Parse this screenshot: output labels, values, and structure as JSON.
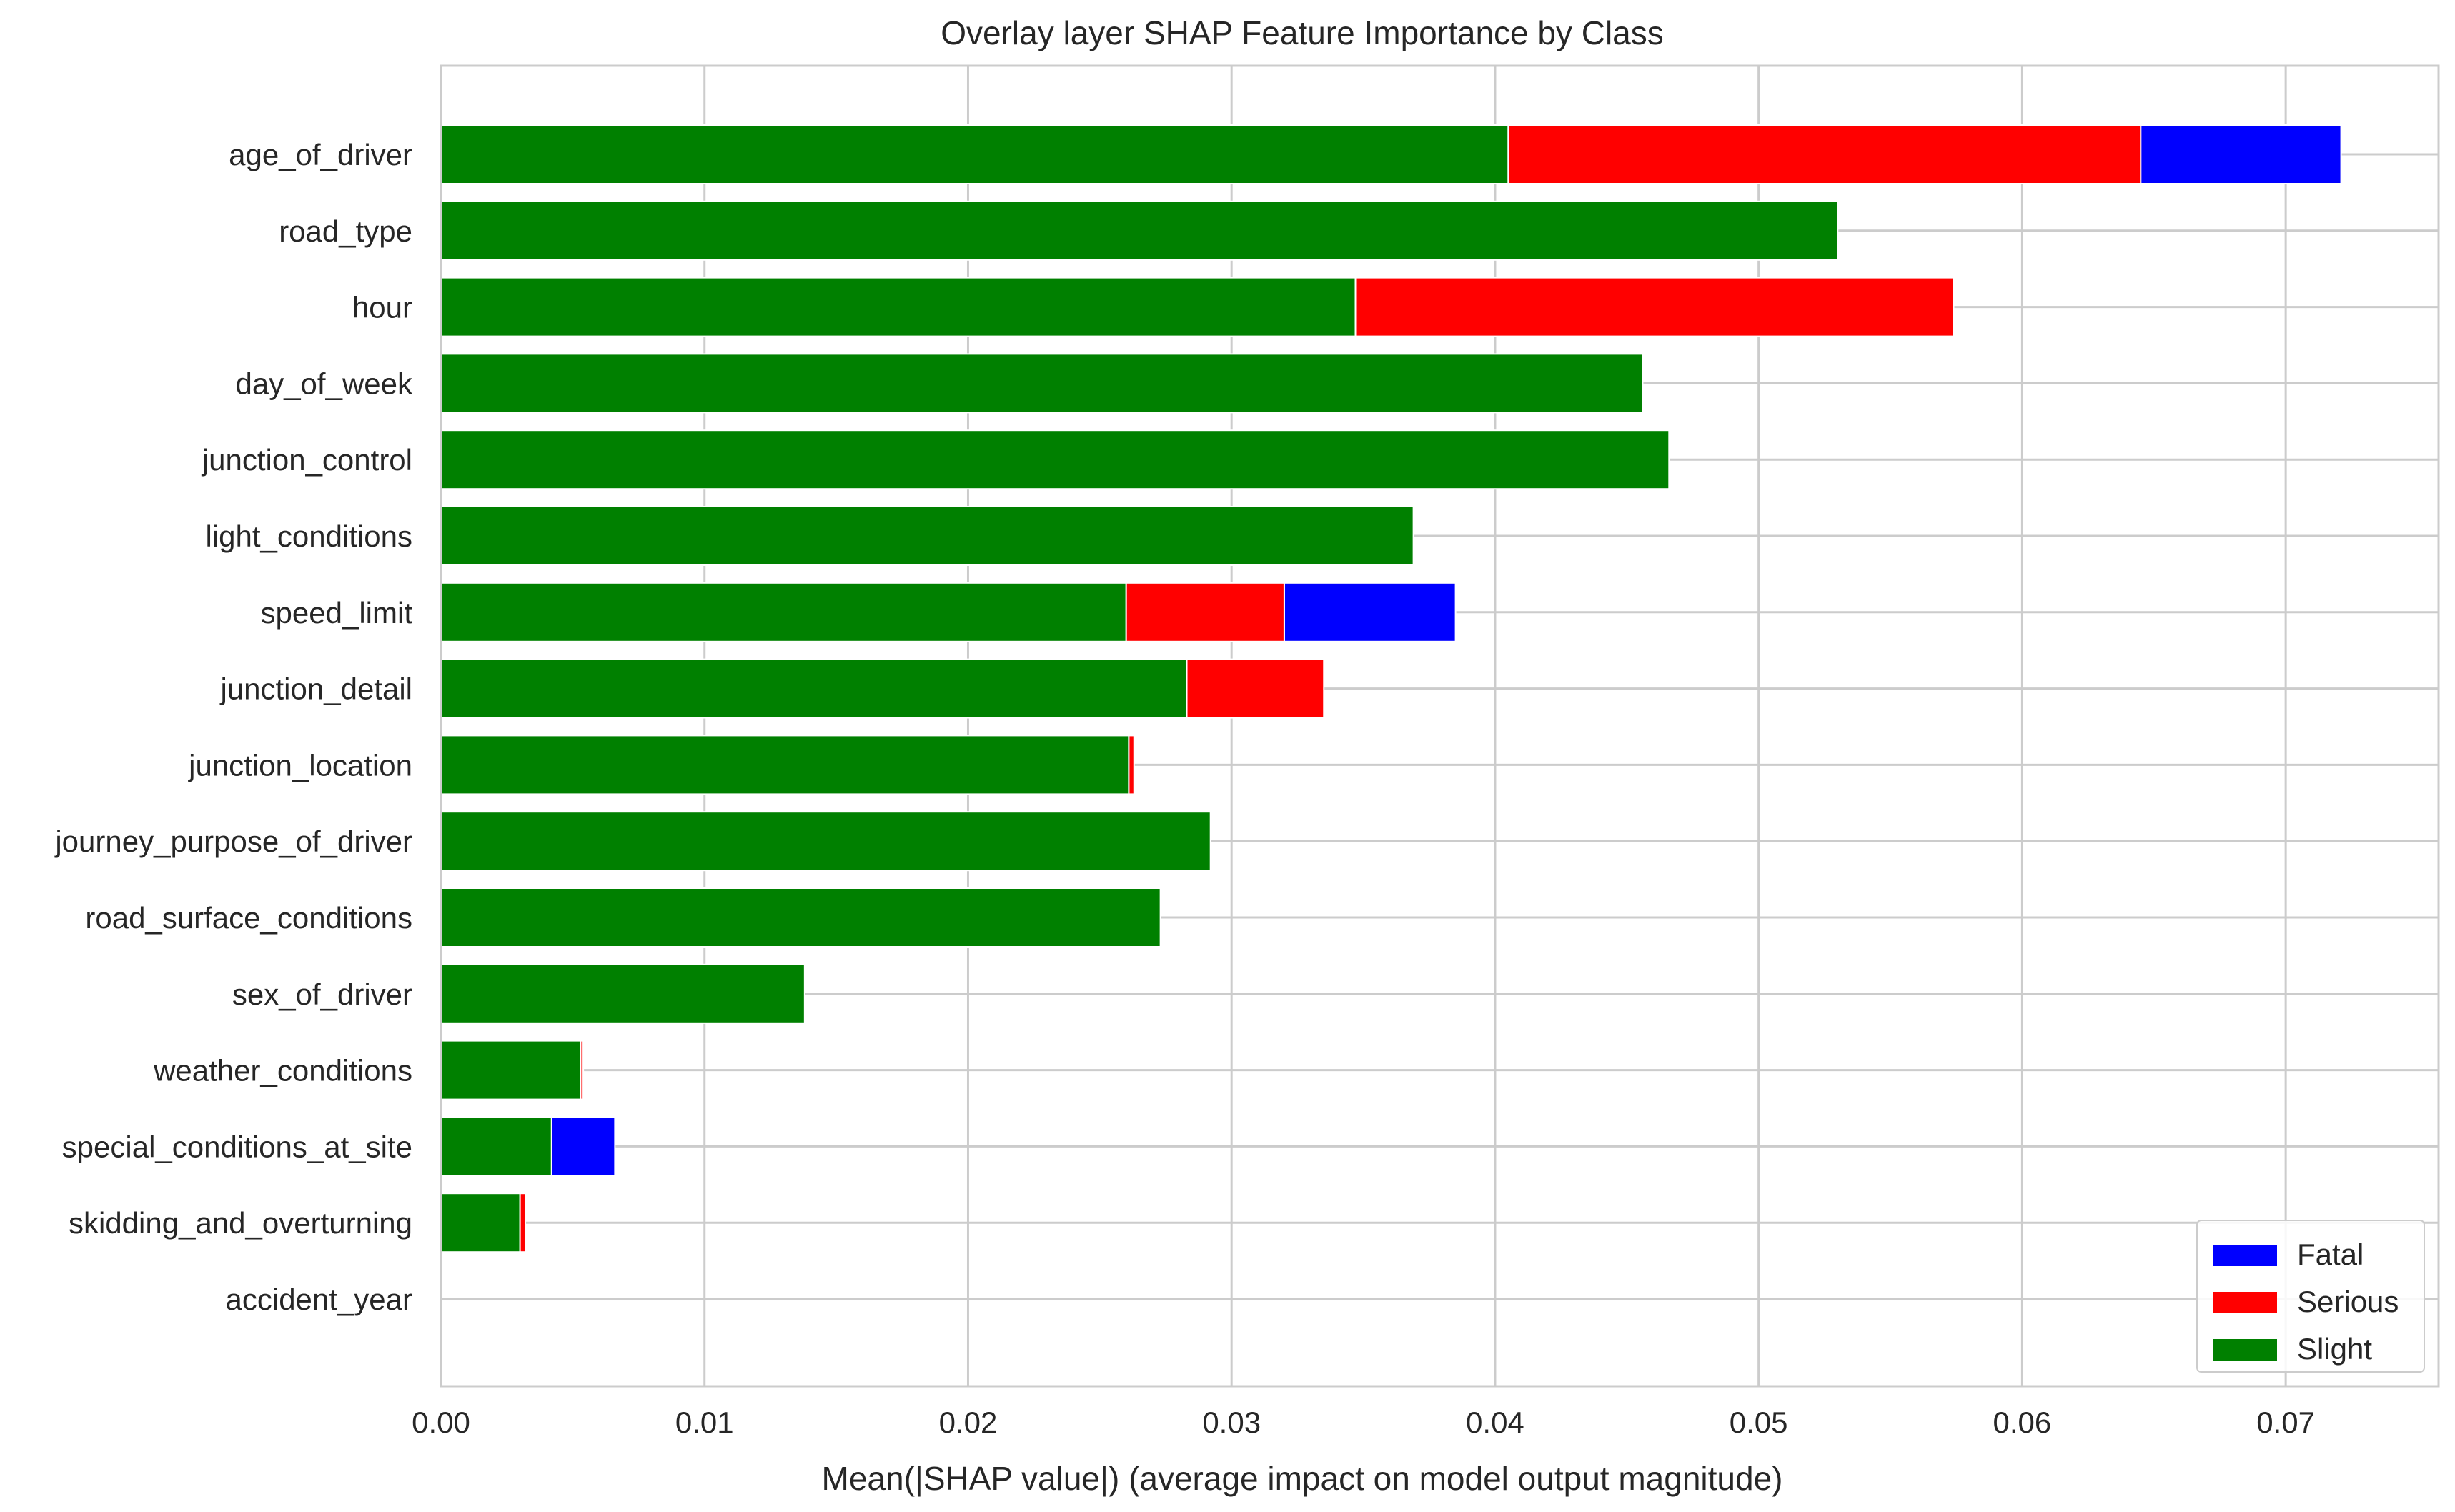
{
  "chart_data": {
    "type": "bar",
    "orientation": "horizontal",
    "stacked": true,
    "title": "Overlay layer SHAP Feature Importance by Class",
    "xlabel": "Mean(|SHAP value|) (average impact on model output magnitude)",
    "ylabel": "",
    "xlim": [
      0,
      0.0758
    ],
    "xticks": [
      "0.00",
      "0.01",
      "0.02",
      "0.03",
      "0.04",
      "0.05",
      "0.06",
      "0.07"
    ],
    "grid": true,
    "legend_position": "bottom-right",
    "categories": [
      "age_of_driver",
      "road_type",
      "hour",
      "day_of_week",
      "junction_control",
      "light_conditions",
      "speed_limit",
      "junction_detail",
      "junction_location",
      "journey_purpose_of_driver",
      "road_surface_conditions",
      "sex_of_driver",
      "weather_conditions",
      "special_conditions_at_site",
      "skidding_and_overturning",
      "accident_year"
    ],
    "series": [
      {
        "name": "Slight",
        "color": "#008000",
        "values": [
          0.0405,
          0.053,
          0.0347,
          0.0456,
          0.0466,
          0.0369,
          0.026,
          0.0283,
          0.0261,
          0.0292,
          0.0273,
          0.0138,
          0.0053,
          0.0042,
          0.003,
          0.0
        ]
      },
      {
        "name": "Serious",
        "color": "#ff0000",
        "values": [
          0.024,
          0.0,
          0.0227,
          0.0,
          0.0,
          0.0,
          0.006,
          0.0052,
          0.0002,
          0.0,
          0.0,
          0.0,
          0.0001,
          0.0,
          0.0002,
          0.0
        ]
      },
      {
        "name": "Fatal",
        "color": "#0000ff",
        "values": [
          0.0076,
          0.0,
          0.0,
          0.0,
          0.0,
          0.0,
          0.0065,
          0.0,
          0.0,
          0.0,
          0.0,
          0.0,
          0.0,
          0.0024,
          0.0,
          0.0
        ]
      }
    ],
    "legend": [
      "Fatal",
      "Serious",
      "Slight"
    ]
  }
}
